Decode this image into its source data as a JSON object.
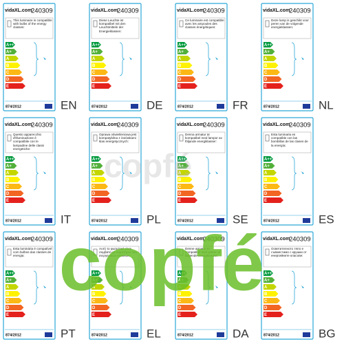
{
  "brand": "vidaXL.com",
  "product_code": "240309",
  "regulation": "874/2012",
  "energy_classes": [
    "A++",
    "A+",
    "A",
    "B",
    "C",
    "D",
    "E"
  ],
  "labels": [
    {
      "language": "EN",
      "text": "This luminaire is compatible with bulbs of the energy classes:"
    },
    {
      "language": "DE",
      "text": "Diese Leuchte ist kompatibel mit den Leuchtmitteln der Energieklassen:"
    },
    {
      "language": "FR",
      "text": "Ce luminaire est compatible avec les ampoules des classes énergétiques:"
    },
    {
      "language": "NL",
      "text": "Deze lamp is geschikt voor peren van de volgende energieklassen:"
    },
    {
      "language": "IT",
      "text": "Questo apparecchio d'illuminazione è compatibile con le lampadine delle classi energetiche:"
    },
    {
      "language": "PL",
      "text": "Oprawa oświetleniowa jest kompatybilna z żarówkami klas energetycznych:"
    },
    {
      "language": "SE",
      "text": "Denna armatur är kompatibel med lampor av följande energiklasser:"
    },
    {
      "language": "ES",
      "text": "Esta luminaria es compatible con las bombillas de las clases de la energía:"
    },
    {
      "language": "PT",
      "text": "Esta luminária é compatível com bulbos das classes de energia:"
    },
    {
      "language": "EL",
      "text": "Αυτό το φωτιστικό είναι συμβατό με λαμπτήρες των ενεργειακών κλάσεων:"
    },
    {
      "language": "DA",
      "text": "Denne armatur er kompatibel med pærer af følgende energiklasser:"
    },
    {
      "language": "BG",
      "text": "Осветителното тяло е съвместимо с крушки от енергийните класове:"
    }
  ],
  "watermark": "copfé"
}
